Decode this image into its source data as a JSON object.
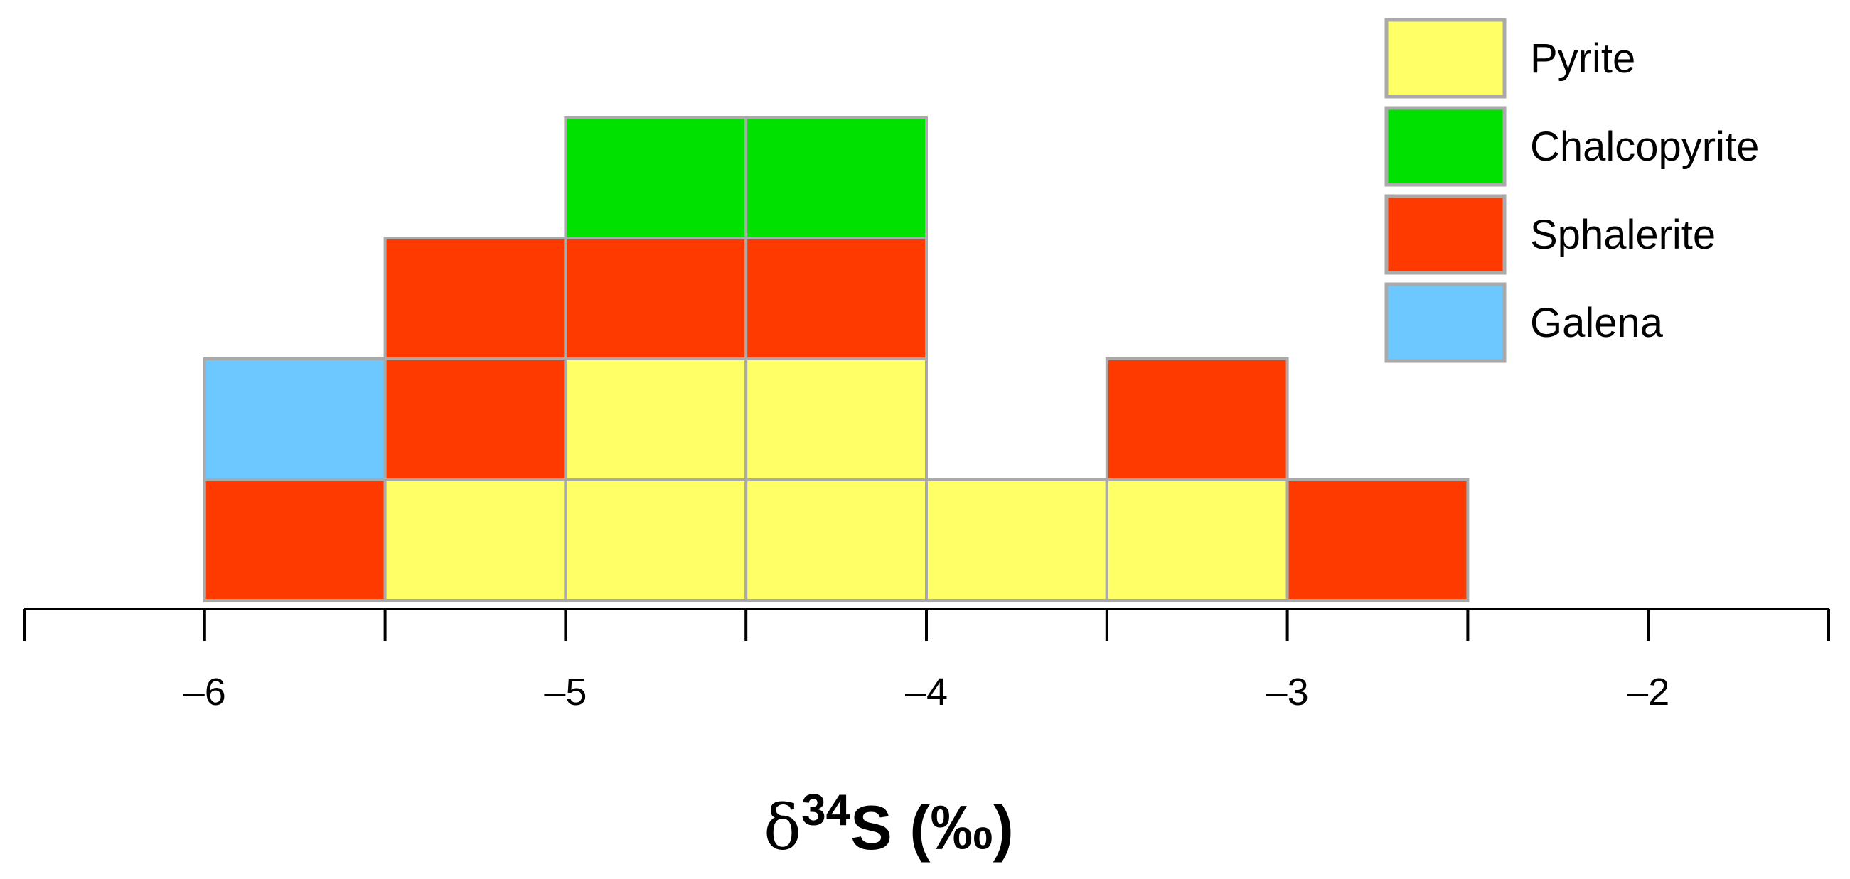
{
  "chart_data": {
    "type": "bar",
    "subtype": "stacked-box-histogram",
    "title": "",
    "xlabel": {
      "symbol": "δ",
      "superscript": "34",
      "rest": "S (‰)"
    },
    "ylabel": "",
    "xlim": [
      -6.5,
      -1.5
    ],
    "bin_width": 0.5,
    "x_ticks": [
      -6.5,
      -6,
      -5.5,
      -5,
      -4.5,
      -4,
      -3.5,
      -3,
      -2.5,
      -2,
      -1.5
    ],
    "x_tick_labels": [
      {
        "value": -6,
        "label": "–6"
      },
      {
        "value": -5,
        "label": "–5"
      },
      {
        "value": -4,
        "label": "–4"
      },
      {
        "value": -3,
        "label": "–3"
      },
      {
        "value": -2,
        "label": "–2"
      }
    ],
    "grid": false,
    "legend_position": "top-right",
    "series": [
      {
        "name": "Pyrite",
        "color": "#FFFF66"
      },
      {
        "name": "Chalcopyrite",
        "color": "#00E100"
      },
      {
        "name": "Sphalerite",
        "color": "#FF3A00"
      },
      {
        "name": "Galena",
        "color": "#6CC8FF"
      }
    ],
    "box_border_color": "#AAAAAA",
    "bins": [
      {
        "bin": [
          -6.0,
          -5.5
        ],
        "stack": [
          "Sphalerite",
          "Galena"
        ]
      },
      {
        "bin": [
          -5.5,
          -5.0
        ],
        "stack": [
          "Pyrite",
          "Sphalerite",
          "Sphalerite"
        ]
      },
      {
        "bin": [
          -5.0,
          -4.5
        ],
        "stack": [
          "Pyrite",
          "Pyrite",
          "Sphalerite",
          "Chalcopyrite"
        ]
      },
      {
        "bin": [
          -4.5,
          -4.0
        ],
        "stack": [
          "Pyrite",
          "Pyrite",
          "Sphalerite",
          "Chalcopyrite"
        ]
      },
      {
        "bin": [
          -4.0,
          -3.5
        ],
        "stack": [
          "Pyrite"
        ]
      },
      {
        "bin": [
          -3.5,
          -3.0
        ],
        "stack": [
          "Pyrite",
          "Sphalerite"
        ]
      },
      {
        "bin": [
          -3.0,
          -2.5
        ],
        "stack": [
          "Sphalerite"
        ]
      }
    ]
  }
}
